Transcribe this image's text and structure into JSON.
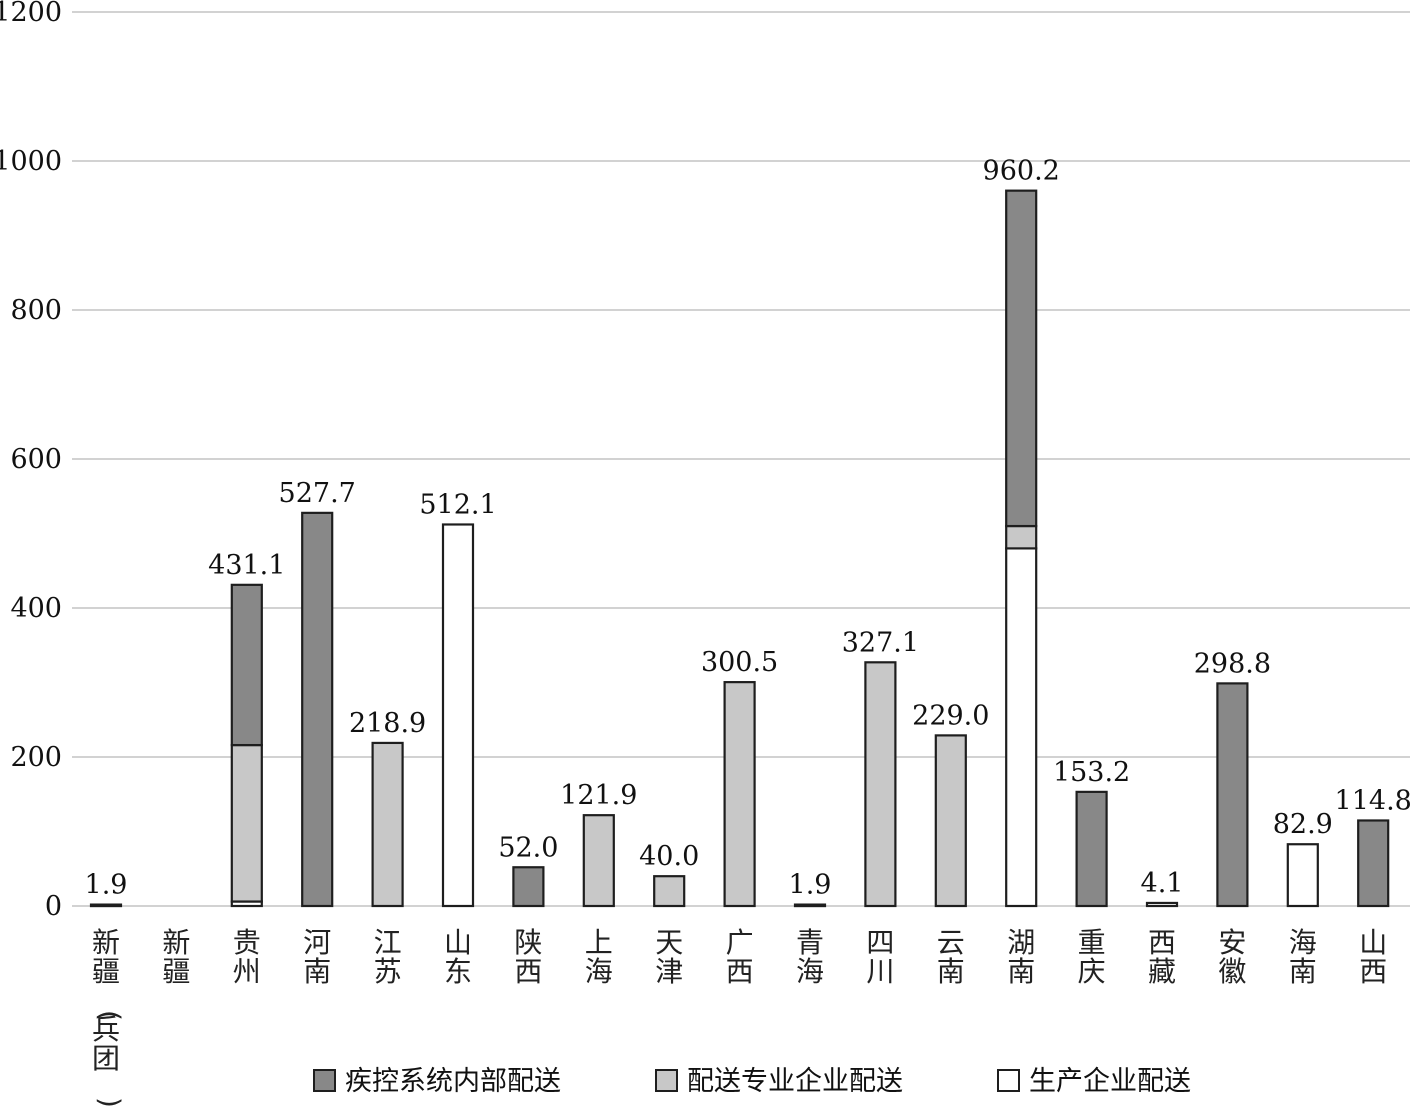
{
  "chart_data": {
    "type": "bar",
    "stacked": true,
    "ylim": [
      0,
      1200
    ],
    "yticks": [
      0,
      200,
      400,
      600,
      800,
      1000,
      1200
    ],
    "grid": true,
    "legend_position": "bottom",
    "categories": [
      "新疆(兵团)",
      "新疆",
      "贵州",
      "河南",
      "江苏",
      "山东",
      "陕西",
      "上海",
      "天津",
      "广西",
      "青海",
      "四川",
      "云南",
      "湖南",
      "重庆",
      "西藏",
      "安徽",
      "海南",
      "山西"
    ],
    "series": [
      {
        "name": "生产企业配送",
        "color": "#ffffff",
        "values": [
          1.9,
          0,
          6,
          0,
          0,
          512.1,
          0,
          0,
          0,
          0,
          1.9,
          0,
          0,
          480,
          0,
          4.1,
          0,
          82.9,
          0
        ]
      },
      {
        "name": "配送专业企业配送",
        "color": "#c8c8c8",
        "values": [
          0,
          0,
          210,
          0,
          218.9,
          0,
          0,
          121.9,
          40.0,
          300.5,
          0,
          327.1,
          229.0,
          30,
          0,
          0,
          0,
          0,
          0
        ]
      },
      {
        "name": "疾控系统内部配送",
        "color": "#888888",
        "values": [
          0,
          0,
          215.1,
          527.7,
          0,
          0,
          52.0,
          0,
          0,
          0,
          0,
          0,
          0,
          450.2,
          153.2,
          0,
          298.8,
          0,
          114.8
        ]
      }
    ],
    "legend_order": [
      "疾控系统内部配送",
      "配送专业企业配送",
      "生产企业配送"
    ],
    "totals": [
      "1.9",
      "",
      "431.1",
      "527.7",
      "218.9",
      "512.1",
      "52.0",
      "121.9",
      "40.0",
      "300.5",
      "1.9",
      "327.1",
      "229.0",
      "960.2",
      "153.2",
      "4.1",
      "298.8",
      "82.9",
      "114.8"
    ]
  }
}
